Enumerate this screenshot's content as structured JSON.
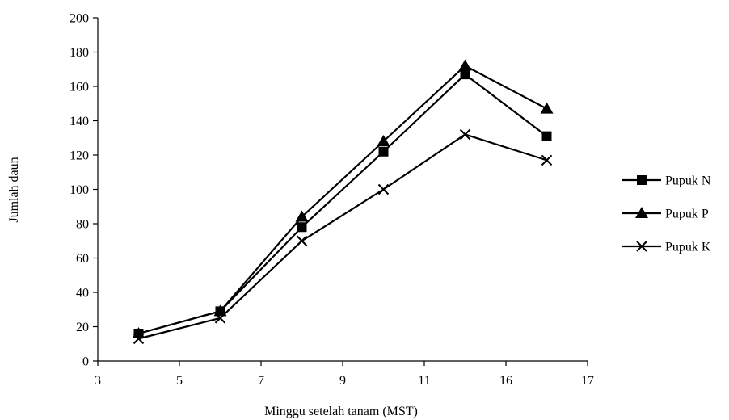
{
  "chart_data": {
    "type": "line",
    "xlabel": "Minggu setelah tanam (MST)",
    "ylabel": "Jumlah daun",
    "x_tick_labels": [
      "3",
      "5",
      "7",
      "9",
      "11",
      "16",
      "17"
    ],
    "y_ticks": [
      0,
      20,
      40,
      60,
      80,
      100,
      120,
      140,
      160,
      180,
      200
    ],
    "ylim": [
      0,
      200
    ],
    "categories": [
      4,
      6,
      8,
      10,
      12,
      14
    ],
    "grid": false,
    "legend_position": "right",
    "series": [
      {
        "name": "Pupuk N",
        "marker": "square",
        "values": [
          16,
          29,
          78,
          122,
          167,
          131
        ]
      },
      {
        "name": "Pupuk P",
        "marker": "triangle",
        "values": [
          16,
          29,
          84,
          128,
          172,
          147
        ]
      },
      {
        "name": "Pupuk K",
        "marker": "x",
        "values": [
          13,
          25,
          70,
          100,
          132,
          117
        ]
      }
    ],
    "colors": {
      "line": "#000000",
      "axis": "#000000"
    }
  }
}
